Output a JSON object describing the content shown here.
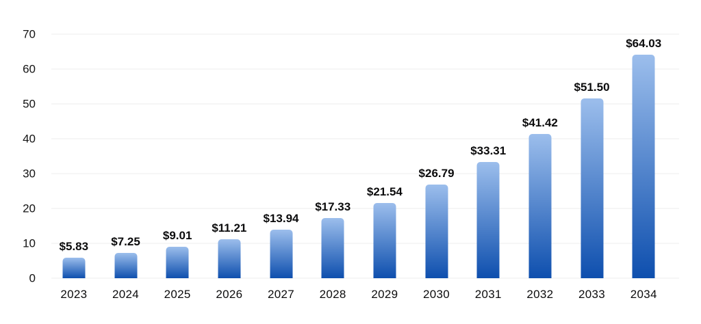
{
  "chart_data": {
    "type": "bar",
    "title": "",
    "xlabel": "",
    "ylabel": "",
    "categories": [
      "2023",
      "2024",
      "2025",
      "2026",
      "2027",
      "2028",
      "2029",
      "2030",
      "2031",
      "2032",
      "2033",
      "2034"
    ],
    "values": [
      5.83,
      7.25,
      9.01,
      11.21,
      13.94,
      17.33,
      21.54,
      26.79,
      33.31,
      41.42,
      51.5,
      64.03
    ],
    "value_labels": [
      "$5.83",
      "$7.25",
      "$9.01",
      "$11.21",
      "$13.94",
      "$17.33",
      "$21.54",
      "$26.79",
      "$33.31",
      "$41.42",
      "$51.50",
      "$64.03"
    ],
    "ylim": [
      0,
      70
    ],
    "yticks": [
      0,
      10,
      20,
      30,
      40,
      50,
      60,
      70
    ],
    "grid": true,
    "legend_position": "none",
    "colors": {
      "bar_gradient_top": "#9cbeec",
      "bar_gradient_bottom": "#0e4fae",
      "gridline": "#ececec",
      "text": "#0b0b0c",
      "background": "#ffffff"
    }
  }
}
